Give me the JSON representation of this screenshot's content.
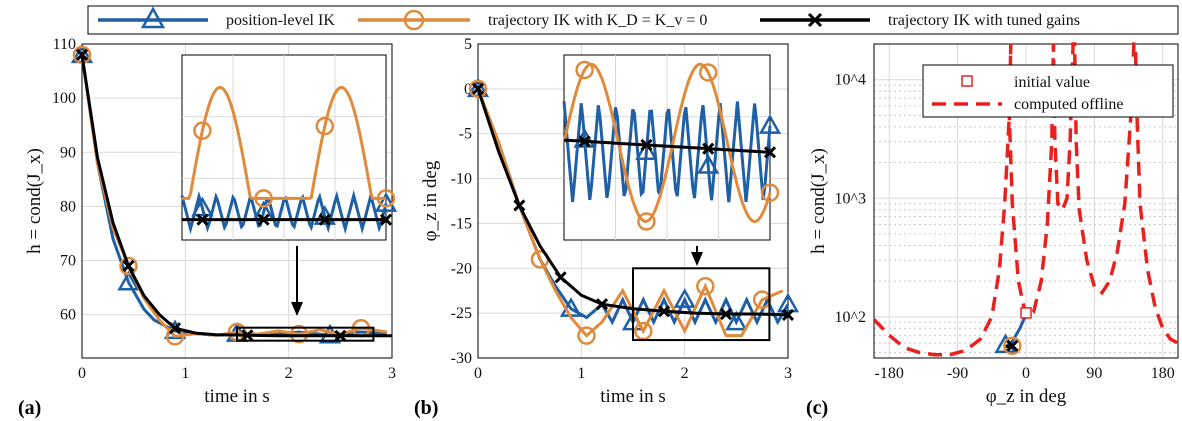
{
  "colors": {
    "blue": "#1f5fa6",
    "orange": "#e08a3c",
    "black": "#000000",
    "red": "#e8211e",
    "grid": "#d9d9d9"
  },
  "legend": {
    "items": [
      {
        "label": "position-level IK",
        "color": "#1f5fa6",
        "marker": "triangle"
      },
      {
        "label": "trajectory IK with K_D = K_v = 0",
        "color": "#e08a3c",
        "marker": "circle"
      },
      {
        "label": "trajectory IK with tuned gains",
        "color": "#000000",
        "marker": "x"
      }
    ]
  },
  "chart_data": [
    {
      "type": "line",
      "panel": "(a)",
      "xlabel": "time in s",
      "ylabel": "h = cond(J_x)",
      "xlim": [
        0,
        3
      ],
      "ylim": [
        52,
        110
      ],
      "xticks": [
        0,
        1,
        2,
        3
      ],
      "yticks": [
        60,
        70,
        80,
        90,
        100,
        110
      ],
      "grid": true,
      "series": [
        {
          "name": "position-level IK",
          "x": [
            0,
            0.15,
            0.3,
            0.45,
            0.6,
            0.7,
            0.9,
            1.1,
            1.3,
            1.5,
            1.8,
            2.1,
            2.4,
            2.7,
            2.95
          ],
          "y": [
            108,
            88,
            74,
            66,
            61,
            59,
            57,
            56.5,
            56.2,
            56.5,
            56.2,
            56.8,
            56.2,
            56.8,
            56.4
          ]
        },
        {
          "name": "trajectory IK with K_D = K_v = 0",
          "x": [
            0,
            0.15,
            0.3,
            0.45,
            0.6,
            0.75,
            0.9,
            1.1,
            1.3,
            1.5,
            1.7,
            1.9,
            2.1,
            2.3,
            2.5,
            2.7,
            2.95
          ],
          "y": [
            108,
            88,
            76,
            69,
            63,
            59,
            56,
            56.5,
            56.2,
            56.8,
            56.4,
            57,
            56.4,
            57.2,
            56.4,
            57.5,
            56.8
          ]
        },
        {
          "name": "trajectory IK with tuned gains",
          "x": [
            0,
            0.15,
            0.3,
            0.45,
            0.6,
            0.75,
            0.9,
            1.1,
            1.3,
            1.6,
            1.9,
            2.2,
            2.5,
            2.8,
            3.0
          ],
          "y": [
            108,
            89,
            77,
            69,
            63.5,
            60,
            57.5,
            56.6,
            56.3,
            56.2,
            56.1,
            56.1,
            56.1,
            56.1,
            56.1
          ]
        }
      ]
    },
    {
      "type": "line",
      "panel": "(b)",
      "xlabel": "time in s",
      "ylabel": "φ_z in deg",
      "xlim": [
        0,
        3
      ],
      "ylim": [
        -30,
        5
      ],
      "xticks": [
        0,
        1,
        2,
        3
      ],
      "yticks": [
        5,
        0,
        -5,
        -10,
        -15,
        -20,
        -25,
        -30
      ],
      "grid": true,
      "series": [
        {
          "name": "position-level IK",
          "x": [
            0,
            0.2,
            0.4,
            0.6,
            0.75,
            0.9,
            1.05,
            1.2,
            1.3,
            1.4,
            1.5,
            1.6,
            1.7,
            1.8,
            1.9,
            2.0,
            2.1,
            2.2,
            2.3,
            2.4,
            2.5,
            2.6,
            2.7,
            2.8,
            2.9,
            3.0
          ],
          "y": [
            0,
            -6,
            -13,
            -19,
            -22,
            -24.5,
            -25.5,
            -24,
            -26,
            -23.5,
            -26,
            -23.5,
            -26,
            -23.5,
            -26,
            -23.5,
            -26,
            -23.5,
            -26,
            -23.5,
            -26,
            -23.5,
            -26,
            -23.5,
            -26,
            -24
          ]
        },
        {
          "name": "trajectory IK with K_D = K_v = 0",
          "x": [
            0,
            0.2,
            0.4,
            0.6,
            0.75,
            0.9,
            1.05,
            1.2,
            1.4,
            1.6,
            1.8,
            2.0,
            2.2,
            2.4,
            2.55,
            2.75,
            2.95
          ],
          "y": [
            0,
            -6,
            -13,
            -19,
            -22.5,
            -25.5,
            -27.5,
            -26,
            -22.5,
            -27,
            -22.5,
            -27,
            -22,
            -27.5,
            -27.5,
            -23.5,
            -22.5
          ]
        },
        {
          "name": "trajectory IK with tuned gains",
          "x": [
            0,
            0.2,
            0.4,
            0.6,
            0.8,
            1.0,
            1.2,
            1.5,
            1.8,
            2.1,
            2.4,
            2.7,
            3.0
          ],
          "y": [
            0,
            -7,
            -13,
            -17.5,
            -21,
            -23,
            -24,
            -24.5,
            -24.8,
            -25,
            -25.1,
            -25.1,
            -25.2
          ]
        }
      ]
    },
    {
      "type": "line",
      "panel": "(c)",
      "xlabel": "φ_z in deg",
      "ylabel": "h = cond(J_x)",
      "xlim": [
        -200,
        200
      ],
      "ylim": [
        45,
        20000
      ],
      "yscale": "log",
      "xticks": [
        -180,
        -90,
        0,
        90,
        180
      ],
      "yticks": [
        100,
        1000,
        10000
      ],
      "ytick_labels": [
        "10^2",
        "10^3",
        "10^4"
      ],
      "grid": true,
      "legend_items": [
        "initial value",
        "computed offline"
      ],
      "initial_value": {
        "x": 0,
        "y": 108
      },
      "series": [
        {
          "name": "computed offline",
          "x": [
            -200,
            -180,
            -160,
            -140,
            -120,
            -100,
            -80,
            -60,
            -45,
            -35,
            -28,
            -22,
            -20,
            -22,
            -18,
            -10,
            0,
            10,
            20,
            28,
            34,
            36,
            38,
            42,
            48,
            54,
            58,
            62,
            64,
            66,
            70,
            80,
            90,
            100,
            110,
            120,
            130,
            138,
            142,
            144,
            146,
            150,
            160,
            170,
            180,
            190,
            200
          ],
          "y": [
            95,
            70,
            55,
            50,
            48,
            48,
            52,
            65,
            100,
            250,
            900,
            5000,
            20000,
            5000,
            900,
            200,
            100,
            110,
            200,
            600,
            3000,
            20000,
            3000,
            900,
            800,
            1000,
            3000,
            20000,
            20000,
            3000,
            800,
            300,
            180,
            160,
            200,
            350,
            900,
            5000,
            20000,
            20000,
            5000,
            900,
            250,
            120,
            80,
            65,
            60
          ]
        }
      ]
    }
  ]
}
